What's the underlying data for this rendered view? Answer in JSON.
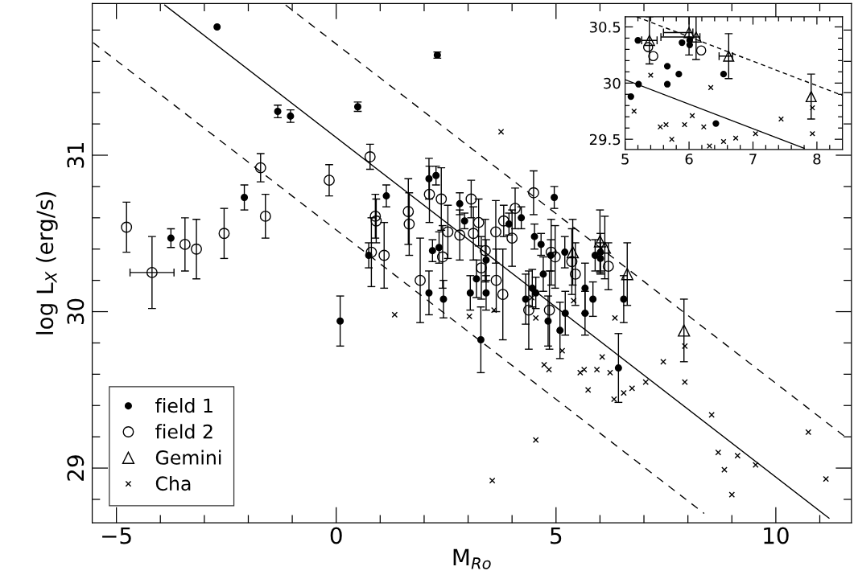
{
  "chart_data": [
    {
      "type": "scatter",
      "xlabel": "M$_{Ro}$",
      "ylabel": "log L$_{X}$ (erg/s)",
      "legend": "bottom left",
      "grid": false,
      "xlim": [
        -5.55,
        11.72
      ],
      "ylim": [
        28.65,
        31.97
      ],
      "xticks": [
        {
          "value": -5,
          "label": "−5"
        },
        {
          "value": -4,
          "label": null
        },
        {
          "value": -3,
          "label": null
        },
        {
          "value": -2,
          "label": null
        },
        {
          "value": -1,
          "label": null
        },
        0,
        {
          "value": 1,
          "label": null
        },
        {
          "value": 2,
          "label": null
        },
        {
          "value": 3,
          "label": null
        },
        {
          "value": 4,
          "label": null
        },
        5,
        {
          "value": 6,
          "label": null
        },
        {
          "value": 7,
          "label": null
        },
        {
          "value": 8,
          "label": null
        },
        {
          "value": 9,
          "label": null
        },
        10,
        {
          "value": 11,
          "label": null
        }
      ],
      "yticks": [
        {
          "value": 28.8,
          "label": null
        },
        29,
        {
          "value": 29.2,
          "label": null
        },
        {
          "value": 29.4,
          "label": null
        },
        {
          "value": 29.6,
          "label": null
        },
        {
          "value": 29.8,
          "label": null
        },
        30,
        {
          "value": 30.2,
          "label": null
        },
        {
          "value": 30.4,
          "label": null
        },
        {
          "value": 30.6,
          "label": null
        },
        {
          "value": 30.8,
          "label": null
        },
        31,
        {
          "value": 31.2,
          "label": null
        },
        {
          "value": 31.4,
          "label": null
        },
        {
          "value": 31.6,
          "label": null
        },
        {
          "value": 31.8,
          "label": null
        }
      ],
      "series": [
        {
          "name": "field 1",
          "marker": "circle",
          "color": "#000000",
          "x": [
            -2.71,
            2.3,
            -1.33,
            -1.04,
            0.49,
            -2.09,
            -3.76,
            0.09,
            0.74,
            1.14,
            2.11,
            2.27,
            2.19,
            2.34,
            2.11,
            2.44,
            2.81,
            2.92,
            3.05,
            3.19,
            3.41,
            3.41,
            3.29,
            3.93,
            4.21,
            4.96,
            4.51,
            4.66,
            4.71,
            4.88,
            5.2,
            4.31,
            4.46,
            4.54,
            4.82,
            5.09,
            5.21,
            5.66,
            5.66,
            5.84,
            5.89,
            6.01,
            6.01,
            6.54,
            6.42
          ],
          "values": [
            31.82,
            31.64,
            31.28,
            31.25,
            31.31,
            30.73,
            30.47,
            29.94,
            30.36,
            30.74,
            30.85,
            30.87,
            30.39,
            30.41,
            30.12,
            30.08,
            30.69,
            30.58,
            30.12,
            30.21,
            30.33,
            30.12,
            29.82,
            30.56,
            30.6,
            30.73,
            30.48,
            30.43,
            30.24,
            30.36,
            30.38,
            30.08,
            30.15,
            30.12,
            29.94,
            29.88,
            29.99,
            30.15,
            29.99,
            30.08,
            30.36,
            30.38,
            30.34,
            30.08,
            29.64
          ],
          "errors": [
            null,
            0.02,
            0.04,
            0.04,
            0.03,
            0.08,
            0.06,
            0.16,
            0.08,
            0.07,
            0.13,
            0.06,
            0.07,
            0.1,
            0.14,
            0.12,
            0.07,
            0.05,
            0.11,
            0.12,
            0.13,
            0.11,
            0.21,
            0.07,
            0.07,
            0.07,
            0.08,
            0.07,
            0.11,
            0.1,
            0.1,
            0.16,
            0.12,
            0.1,
            0.16,
            0.18,
            0.14,
            0.16,
            0.14,
            0.11,
            0.1,
            0.12,
            0.1,
            0.15,
            0.22
          ]
        },
        {
          "name": "field 2",
          "marker": "circle",
          "color": "#000000",
          "x": [
            -4.77,
            -4.19,
            -3.44,
            -3.18,
            -2.55,
            -1.72,
            -1.61,
            -0.16,
            0.77,
            0.89,
            0.91,
            0.8,
            1.09,
            1.64,
            1.66,
            2.12,
            2.39,
            2.42,
            2.54,
            1.91,
            2.81,
            3.07,
            3.12,
            3.24,
            3.39,
            3.3,
            3.63,
            3.64,
            3.79,
            3.81,
            4.0,
            4.07,
            4.49,
            4.38,
            4.89,
            4.98,
            4.85,
            5.36,
            5.44,
            6.19
          ],
          "values": [
            30.54,
            30.25,
            30.43,
            30.4,
            30.5,
            30.92,
            30.61,
            30.84,
            30.99,
            30.61,
            30.58,
            30.38,
            30.36,
            30.64,
            30.56,
            30.75,
            30.72,
            30.35,
            30.51,
            30.2,
            30.49,
            30.72,
            30.5,
            30.57,
            30.39,
            30.28,
            30.51,
            30.2,
            30.11,
            30.58,
            30.47,
            30.66,
            30.76,
            30.01,
            30.38,
            30.35,
            30.01,
            30.32,
            30.24,
            30.29
          ],
          "errors": [
            0.16,
            0.23,
            0.17,
            0.19,
            0.16,
            0.09,
            0.14,
            0.1,
            0.08,
            0.14,
            0.14,
            0.22,
            0.21,
            0.21,
            0.2,
            0.18,
            0.2,
            0.2,
            0.17,
            0.27,
            0.16,
            0.12,
            0.17,
            0.15,
            0.2,
            0.2,
            0.2,
            0.2,
            0.29,
            0.1,
            0.18,
            0.13,
            0.14,
            0.25,
            0.21,
            0.2,
            0.25,
            0.21,
            0.2,
            0.15
          ],
          "xerrors": [
            null,
            0.5,
            null,
            null,
            null,
            null,
            null,
            null,
            null,
            null,
            null,
            null,
            null,
            null,
            null,
            null,
            null,
            null,
            null,
            null,
            null,
            null,
            null,
            null,
            null,
            null,
            null,
            null,
            null,
            null,
            null,
            null,
            null,
            null,
            null,
            null,
            null,
            null,
            null,
            null
          ]
        },
        {
          "name": "Gemini",
          "marker": "triangle",
          "color": "#000000",
          "x": [
            5.38,
            6.0,
            6.11,
            6.62,
            7.91
          ],
          "values": [
            30.38,
            30.45,
            30.41,
            30.24,
            29.88
          ],
          "errors": [
            0.21,
            0.2,
            0.2,
            0.2,
            0.2
          ]
        },
        {
          "name": "Cha",
          "marker": "cross",
          "color": "#000000",
          "x": [
            3.75,
            1.33,
            3.03,
            3.59,
            4.45,
            4.54,
            4.73,
            4.84,
            5.14,
            5.4,
            6.34,
            6.05,
            5.55,
            5.64,
            5.93,
            6.23,
            5.73,
            6.32,
            6.54,
            6.73,
            7.04,
            7.44,
            7.93,
            7.93,
            4.54,
            8.54,
            8.69,
            9.13,
            8.83,
            9.54,
            9.0,
            10.74,
            11.14,
            3.55
          ],
          "values": [
            31.15,
            29.98,
            29.97,
            30.01,
            30.09,
            29.96,
            29.66,
            29.63,
            29.75,
            30.07,
            29.96,
            29.71,
            29.61,
            29.63,
            29.63,
            29.61,
            29.5,
            29.44,
            29.48,
            29.51,
            29.55,
            29.68,
            29.78,
            29.55,
            29.18,
            29.34,
            29.1,
            29.08,
            28.99,
            29.02,
            28.83,
            29.23,
            28.93,
            28.92
          ]
        },
        {
          "type": "line",
          "line_style": "solid",
          "color": "#000000",
          "x": [
            -3.9,
            11.21
          ],
          "values": [
            31.96,
            28.68
          ]
        },
        {
          "type": "line",
          "line_style": "dashed",
          "color": "#000000",
          "x": [
            -1.15,
            11.67
          ],
          "values": [
            31.96,
            29.18
          ]
        },
        {
          "type": "line",
          "line_style": "dashed",
          "color": "#000000",
          "x": [
            -5.53,
            8.37
          ],
          "values": [
            31.72,
            28.71
          ]
        }
      ]
    },
    {
      "type": "scatter",
      "grid": false,
      "xlim": [
        5.0,
        8.4
      ],
      "ylim": [
        29.41,
        30.59
      ],
      "xticks": [
        5,
        {
          "value": 5.2,
          "label": null
        },
        {
          "value": 5.4,
          "label": null
        },
        {
          "value": 5.6,
          "label": null
        },
        {
          "value": 5.8,
          "label": null
        },
        6,
        {
          "value": 6.2,
          "label": null
        },
        {
          "value": 6.4,
          "label": null
        },
        {
          "value": 6.6,
          "label": null
        },
        {
          "value": 6.8,
          "label": null
        },
        7,
        {
          "value": 7.2,
          "label": null
        },
        {
          "value": 7.4,
          "label": null
        },
        {
          "value": 7.6,
          "label": null
        },
        {
          "value": 7.8,
          "label": null
        },
        8,
        {
          "value": 8.2,
          "label": null
        }
      ],
      "yticks": [
        29.5,
        {
          "value": 29.6,
          "label": null
        },
        {
          "value": 29.7,
          "label": null
        },
        {
          "value": 29.8,
          "label": null
        },
        {
          "value": 29.9,
          "label": null
        },
        30,
        {
          "value": 30.1,
          "label": null
        },
        {
          "value": 30.2,
          "label": null
        },
        {
          "value": 30.3,
          "label": null
        },
        {
          "value": 30.4,
          "label": null
        },
        30.5
      ],
      "series": [
        {
          "marker": "circle",
          "color": "#000000",
          "x": [
            5.2,
            5.09,
            5.21,
            5.66,
            5.66,
            5.84,
            5.89,
            6.01,
            6.01,
            6.54,
            6.42
          ],
          "values": [
            30.38,
            29.88,
            29.99,
            30.15,
            29.99,
            30.08,
            30.36,
            30.38,
            30.34,
            30.08,
            29.64
          ]
        },
        {
          "marker": "circle",
          "color": "#000000",
          "x": [
            5.36,
            5.44,
            6.19
          ],
          "values": [
            30.32,
            30.24,
            30.29
          ]
        },
        {
          "marker": "triangle",
          "color": "#000000",
          "x": [
            5.38,
            6.0,
            6.11,
            6.62,
            7.91
          ],
          "values": [
            30.38,
            30.45,
            30.41,
            30.24,
            29.88
          ],
          "errors": [
            0.21,
            0.2,
            0.2,
            0.2,
            0.2
          ],
          "xerrors": [
            0.12,
            [
              5.6,
              6.06
            ],
            [
              5.56,
              6.17
            ],
            [
              6.47,
              6.68
            ],
            null
          ]
        },
        {
          "marker": "cross",
          "color": "#000000",
          "x": [
            5.14,
            5.4,
            6.34,
            6.05,
            5.55,
            5.64,
            5.93,
            6.23,
            5.73,
            6.32,
            6.54,
            6.73,
            7.04,
            7.44,
            7.93,
            7.93
          ],
          "values": [
            29.75,
            30.07,
            29.96,
            29.71,
            29.61,
            29.63,
            29.63,
            29.61,
            29.5,
            29.44,
            29.48,
            29.51,
            29.55,
            29.68,
            29.78,
            29.55
          ]
        },
        {
          "type": "line",
          "line_style": "solid",
          "color": "#000000",
          "x": [
            5.0,
            7.8
          ],
          "values": [
            30.03,
            29.42
          ]
        },
        {
          "type": "line",
          "line_style": "dashed",
          "color": "#000000",
          "x": [
            5.18,
            8.4
          ],
          "values": [
            30.59,
            29.89
          ]
        }
      ]
    }
  ]
}
